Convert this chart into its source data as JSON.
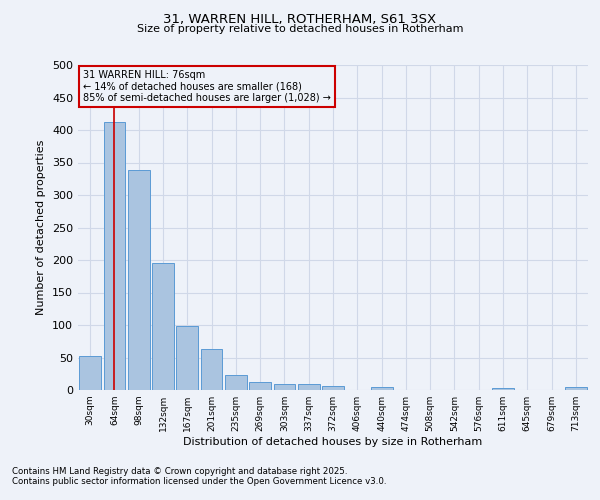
{
  "title1": "31, WARREN HILL, ROTHERHAM, S61 3SX",
  "title2": "Size of property relative to detached houses in Rotherham",
  "xlabel": "Distribution of detached houses by size in Rotherham",
  "ylabel": "Number of detached properties",
  "footnote1": "Contains HM Land Registry data © Crown copyright and database right 2025.",
  "footnote2": "Contains public sector information licensed under the Open Government Licence v3.0.",
  "categories": [
    "30sqm",
    "64sqm",
    "98sqm",
    "132sqm",
    "167sqm",
    "201sqm",
    "235sqm",
    "269sqm",
    "303sqm",
    "337sqm",
    "372sqm",
    "406sqm",
    "440sqm",
    "474sqm",
    "508sqm",
    "542sqm",
    "576sqm",
    "611sqm",
    "645sqm",
    "679sqm",
    "713sqm"
  ],
  "values": [
    53,
    413,
    338,
    195,
    98,
    63,
    23,
    13,
    10,
    10,
    6,
    0,
    4,
    0,
    0,
    0,
    0,
    3,
    0,
    0,
    4
  ],
  "bar_color": "#aac4e0",
  "bar_edge_color": "#5b9bd5",
  "grid_color": "#d0d8e8",
  "background_color": "#eef2f9",
  "vline_x": 1,
  "vline_color": "#cc0000",
  "annotation_line1": "31 WARREN HILL: 76sqm",
  "annotation_line2": "← 14% of detached houses are smaller (168)",
  "annotation_line3": "85% of semi-detached houses are larger (1,028) →",
  "annotation_box_color": "#cc0000",
  "ylim": [
    0,
    500
  ],
  "yticks": [
    0,
    50,
    100,
    150,
    200,
    250,
    300,
    350,
    400,
    450,
    500
  ]
}
